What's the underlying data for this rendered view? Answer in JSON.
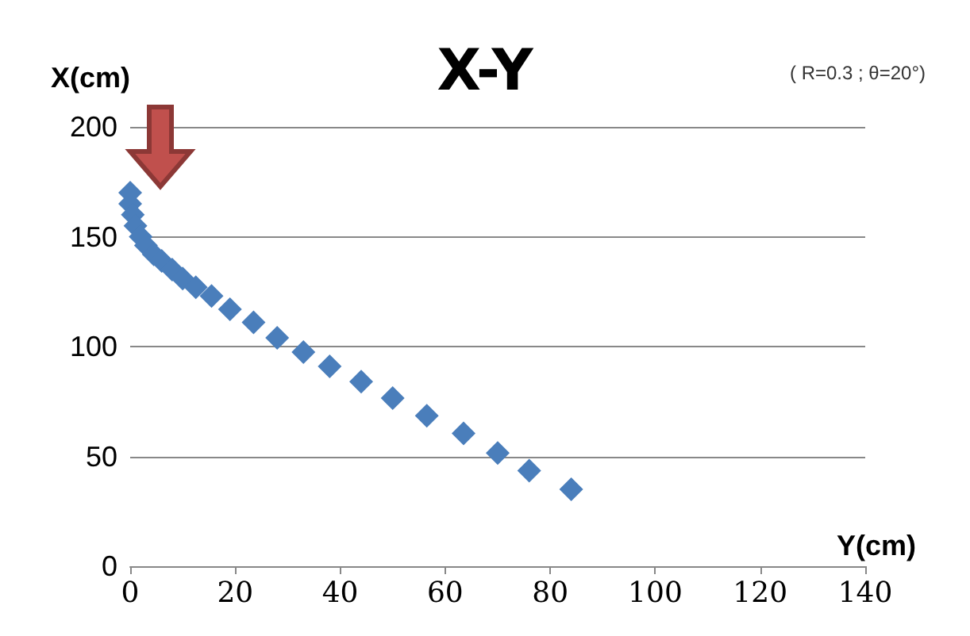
{
  "chart_data": {
    "type": "scatter",
    "title": "X-Y",
    "xlabel": "Y(cm)",
    "ylabel": "X(cm)",
    "annotations": [
      "( R=0.3 ; θ=20°)"
    ],
    "series": [
      {
        "color": "#4a7ebb",
        "x": [
          0,
          0,
          0.5,
          1,
          2,
          3,
          4.5,
          6,
          8,
          10,
          12.5,
          15.5,
          19,
          23.5,
          28,
          33,
          38,
          44,
          50,
          56.5,
          63.5,
          70,
          76,
          84
        ],
        "values": [
          170,
          165,
          160,
          155,
          150,
          146,
          142,
          139,
          135,
          131,
          127,
          123,
          117,
          111,
          104,
          97.5,
          91,
          84,
          76.5,
          68.5,
          60.5,
          51.5,
          43.5,
          35
        ]
      }
    ],
    "xlim": [
      0,
      140
    ],
    "xticks": [
      0,
      20,
      40,
      60,
      80,
      100,
      120,
      140
    ],
    "ylim": [
      0,
      200
    ],
    "yticks": [
      0,
      50,
      100,
      150,
      200
    ],
    "grid": "y",
    "marker": "diamond"
  }
}
